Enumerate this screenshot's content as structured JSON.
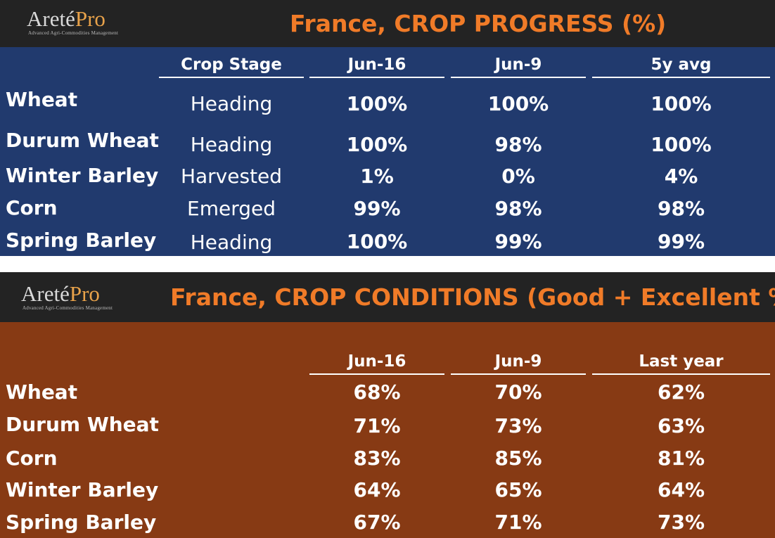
{
  "brand": {
    "name_part1": "Areté",
    "name_part2": "Pro",
    "tagline": "Advanced Agri-Commodities Management"
  },
  "progress": {
    "title": "France, CROP PROGRESS (%)",
    "columns": [
      "Crop Stage",
      "Jun-16",
      "Jun-9",
      "5y avg"
    ],
    "rows": [
      {
        "crop": "Wheat",
        "stage": "Heading",
        "jun16": "100%",
        "jun9": "100%",
        "avg5y": "100%"
      },
      {
        "crop": "Durum Wheat",
        "stage": "Heading",
        "jun16": "100%",
        "jun9": "98%",
        "avg5y": "100%"
      },
      {
        "crop": "Winter Barley",
        "stage": "Harvested",
        "jun16": "1%",
        "jun9": "0%",
        "avg5y": "4%"
      },
      {
        "crop": "Corn",
        "stage": "Emerged",
        "jun16": "99%",
        "jun9": "98%",
        "avg5y": "98%"
      },
      {
        "crop": "Spring Barley",
        "stage": "Heading",
        "jun16": "100%",
        "jun9": "99%",
        "avg5y": "99%"
      }
    ]
  },
  "conditions": {
    "title": "France, CROP CONDITIONS (Good + Excellent %)",
    "columns": [
      "Jun-16",
      "Jun-9",
      "Last year"
    ],
    "rows": [
      {
        "crop": "Wheat",
        "jun16": "68%",
        "jun9": "70%",
        "last_year": "62%"
      },
      {
        "crop": "Durum Wheat",
        "jun16": "71%",
        "jun9": "73%",
        "last_year": "63%"
      },
      {
        "crop": "Corn",
        "jun16": "83%",
        "jun9": "85%",
        "last_year": "81%"
      },
      {
        "crop": "Winter Barley",
        "jun16": "64%",
        "jun9": "65%",
        "last_year": "64%"
      },
      {
        "crop": "Spring Barley",
        "jun16": "67%",
        "jun9": "71%",
        "last_year": "73%"
      }
    ]
  },
  "colors": {
    "header_bg": "#232323",
    "title": "#f07b28",
    "progress_bg": "#213a6e",
    "conditions_bg": "#873a14"
  }
}
